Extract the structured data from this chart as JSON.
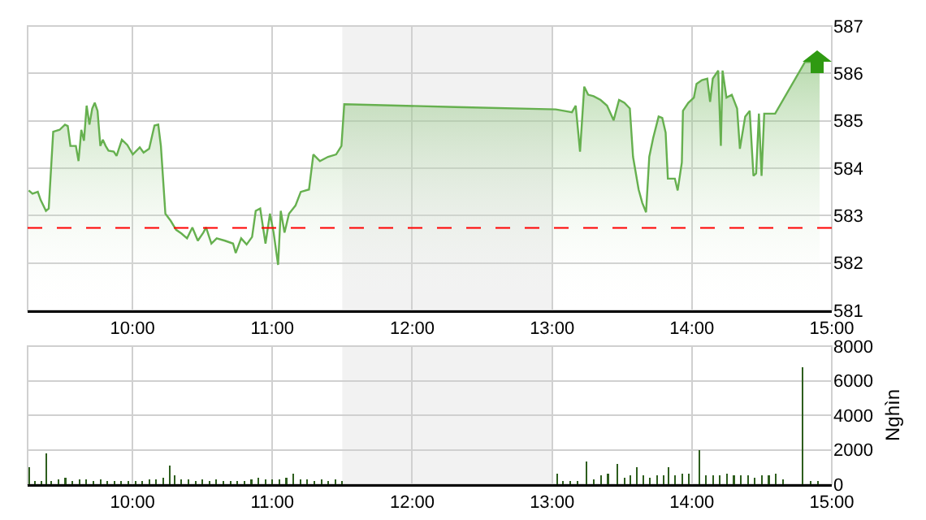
{
  "chart_data": [
    {
      "type": "area",
      "x": [
        9.258,
        9.285,
        9.323,
        9.343,
        9.381,
        9.401,
        9.433,
        9.479,
        9.517,
        9.537,
        9.556,
        9.595,
        9.614,
        9.634,
        9.653,
        9.672,
        9.692,
        9.712,
        9.73,
        9.75,
        9.77,
        9.788,
        9.808,
        9.828,
        9.866,
        9.886,
        9.924,
        9.963,
        10.002,
        10.052,
        10.079,
        10.119,
        10.157,
        10.184,
        10.203,
        10.235,
        10.273,
        10.312,
        10.351,
        10.39,
        10.428,
        10.467,
        10.506,
        10.526,
        10.564,
        10.602,
        10.661,
        10.719,
        10.738,
        10.777,
        10.816,
        10.855,
        10.881,
        10.913,
        10.951,
        10.983,
        11.009,
        11.041,
        11.06,
        11.087,
        11.119,
        11.165,
        11.203,
        11.262,
        11.293,
        11.34,
        11.398,
        11.456,
        11.494,
        11.514,
        12.308,
        13.026,
        13.084,
        13.142,
        13.169,
        13.2,
        13.23,
        13.258,
        13.297,
        13.347,
        13.393,
        13.44,
        13.479,
        13.517,
        13.556,
        13.579,
        13.619,
        13.645,
        13.672,
        13.695,
        13.723,
        13.762,
        13.788,
        13.812,
        13.828,
        13.878,
        13.898,
        13.928,
        13.936,
        13.974,
        14.014,
        14.033,
        14.072,
        14.11,
        14.13,
        14.149,
        14.188,
        14.207,
        14.219,
        14.247,
        14.285,
        14.323,
        14.343,
        14.381,
        14.413,
        14.44,
        14.459,
        14.479,
        14.498,
        14.517,
        14.549,
        14.595,
        14.808,
        14.913
      ],
      "series": [
        {
          "color": "#66b04f",
          "values": [
            583.53,
            583.46,
            583.5,
            583.33,
            583.1,
            583.15,
            584.77,
            584.81,
            584.92,
            584.89,
            584.47,
            584.47,
            584.15,
            584.81,
            584.58,
            585.32,
            584.92,
            585.26,
            585.38,
            585.21,
            584.47,
            584.6,
            584.47,
            584.37,
            584.35,
            584.26,
            584.6,
            584.49,
            584.29,
            584.44,
            584.33,
            584.41,
            584.9,
            584.92,
            584.47,
            583.04,
            582.89,
            582.7,
            582.62,
            582.52,
            582.75,
            582.47,
            582.64,
            582.75,
            582.41,
            582.52,
            582.47,
            582.41,
            582.21,
            582.52,
            582.39,
            582.55,
            583.1,
            583.15,
            582.41,
            583.04,
            582.64,
            581.96,
            583.1,
            582.64,
            583.04,
            583.21,
            583.5,
            583.55,
            584.29,
            584.15,
            584.24,
            584.29,
            584.47,
            585.35,
            585.29,
            585.24,
            585.21,
            585.18,
            585.32,
            584.35,
            585.72,
            585.55,
            585.52,
            585.44,
            585.32,
            585.01,
            585.44,
            585.38,
            585.26,
            584.24,
            583.55,
            583.27,
            583.07,
            584.24,
            584.64,
            585.09,
            585.06,
            584.75,
            583.78,
            583.78,
            583.53,
            584.12,
            585.21,
            585.38,
            585.49,
            585.78,
            585.86,
            585.89,
            585.4,
            585.89,
            586.06,
            584.47,
            586.06,
            585.49,
            585.55,
            585.26,
            584.41,
            585.09,
            585.21,
            583.84,
            583.89,
            585.15,
            583.84,
            585.15,
            585.15,
            585.15,
            586.24,
            586.24
          ]
        }
      ],
      "xlim": [
        9.25,
        15
      ],
      "xticks": [
        {
          "value": 10,
          "label": "10:00"
        },
        {
          "value": 11,
          "label": "11:00"
        },
        {
          "value": 12,
          "label": "12:00"
        },
        {
          "value": 13,
          "label": "13:00"
        },
        {
          "value": 14,
          "label": "14:00"
        },
        {
          "value": 15,
          "label": "15:00"
        }
      ],
      "ylim": [
        581,
        587
      ],
      "yticks": [
        581,
        582,
        583,
        584,
        585,
        586,
        587
      ],
      "grid": true,
      "ref_lines": [
        {
          "axis": "y",
          "value": 582.74,
          "color": "#ff0000",
          "line_style": "dashed"
        }
      ],
      "bands": [
        {
          "axis": "x",
          "from": 11.5,
          "to": 13,
          "color": "#f2f2f2"
        }
      ]
    },
    {
      "type": "bar",
      "ylabel": "Nghìn",
      "x": [
        9.26,
        9.3,
        9.35,
        9.383,
        9.42,
        9.47,
        9.52,
        9.57,
        9.62,
        9.67,
        9.72,
        9.77,
        9.82,
        9.87,
        9.92,
        9.97,
        10.02,
        10.07,
        10.12,
        10.17,
        10.22,
        10.266,
        10.3,
        10.35,
        10.4,
        10.45,
        10.5,
        10.55,
        10.6,
        10.65,
        10.7,
        10.75,
        10.8,
        10.85,
        10.9,
        10.95,
        11.0,
        11.05,
        11.1,
        11.15,
        11.2,
        11.25,
        11.3,
        11.35,
        11.4,
        11.45,
        11.5,
        13.035,
        13.08,
        13.13,
        13.18,
        13.247,
        13.3,
        13.35,
        13.4,
        13.466,
        13.52,
        13.56,
        13.606,
        13.65,
        13.7,
        13.75,
        13.8,
        13.835,
        13.88,
        13.93,
        13.98,
        14.055,
        14.1,
        14.15,
        14.2,
        14.25,
        14.3,
        14.35,
        14.4,
        14.45,
        14.5,
        14.55,
        14.6,
        14.65,
        14.791,
        14.85,
        14.9
      ],
      "series": [
        {
          "color": "#2e5e1e",
          "values": [
            1000,
            200,
            200,
            1800,
            200,
            300,
            400,
            200,
            300,
            300,
            200,
            300,
            200,
            200,
            200,
            200,
            200,
            200,
            300,
            300,
            400,
            1100,
            500,
            300,
            300,
            200,
            300,
            200,
            300,
            200,
            200,
            200,
            200,
            300,
            400,
            300,
            300,
            300,
            400,
            600,
            300,
            300,
            200,
            300,
            200,
            300,
            200,
            600,
            200,
            200,
            200,
            1300,
            300,
            500,
            600,
            1200,
            400,
            500,
            1000,
            500,
            400,
            500,
            500,
            1000,
            500,
            600,
            600,
            2000,
            500,
            500,
            500,
            600,
            500,
            500,
            500,
            400,
            500,
            500,
            600,
            300,
            6800,
            200,
            200
          ]
        }
      ],
      "xlim": [
        9.25,
        15
      ],
      "xticks": [
        {
          "value": 10,
          "label": "10:00"
        },
        {
          "value": 11,
          "label": "11:00"
        },
        {
          "value": 12,
          "label": "12:00"
        },
        {
          "value": 13,
          "label": "13:00"
        },
        {
          "value": 14,
          "label": "14:00"
        },
        {
          "value": 15,
          "label": "15:00"
        }
      ],
      "ylim": [
        0,
        8000
      ],
      "yticks": [
        0,
        2000,
        4000,
        6000,
        8000
      ],
      "grid": true,
      "bands": [
        {
          "axis": "x",
          "from": 11.5,
          "to": 13,
          "color": "#f2f2f2"
        }
      ]
    }
  ]
}
